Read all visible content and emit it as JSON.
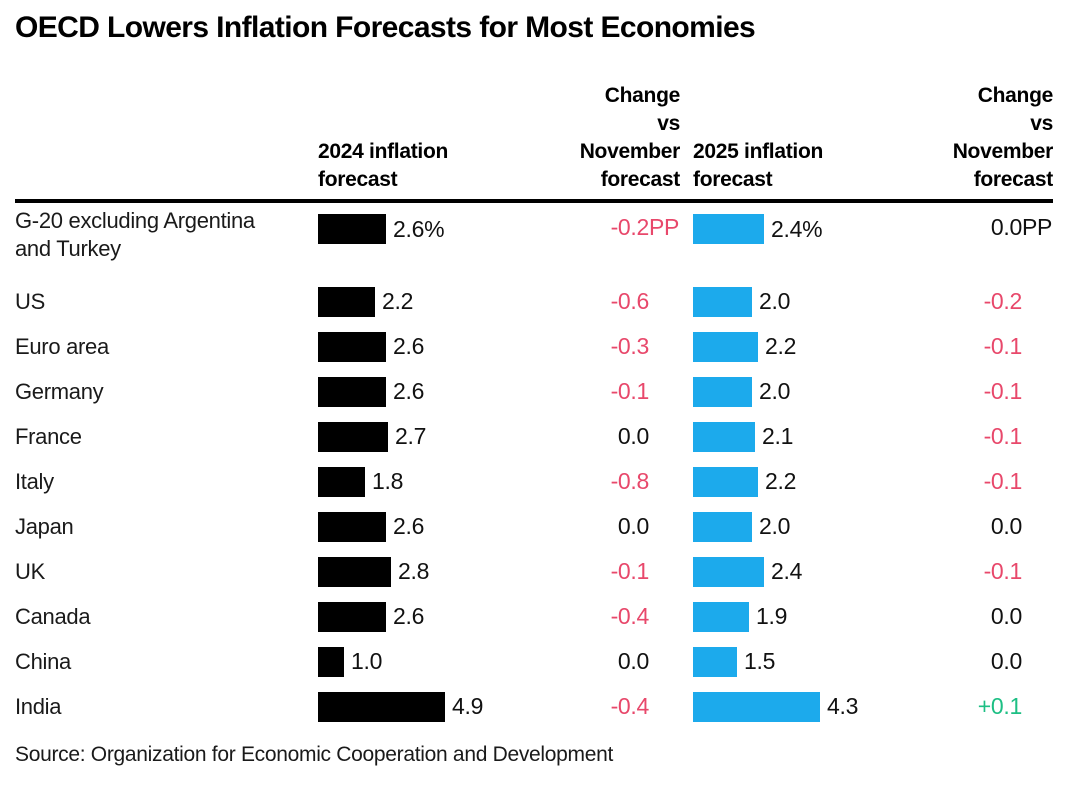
{
  "title": "OECD Lowers Inflation Forecasts for Most Economies",
  "source": "Source: Organization for Economic Cooperation and Development",
  "colors": {
    "bar_2024": "#000000",
    "bar_2025": "#1caaec",
    "negative_change": "#e8486b",
    "positive_change": "#1dbf84",
    "zero_change": "#111111",
    "text": "#1a1a1a",
    "rule": "#000000"
  },
  "headers": {
    "col_2024": [
      "2024 inflation",
      "forecast"
    ],
    "col_change_2024": [
      "Change",
      "vs",
      "November",
      "forecast"
    ],
    "col_2025": [
      "2025 inflation",
      "forecast"
    ],
    "col_change_2025": [
      "Change",
      "vs",
      "November",
      "forecast"
    ]
  },
  "chart_data": {
    "type": "bar",
    "orientation": "horizontal",
    "title": "OECD Lowers Inflation Forecasts for Most Economies",
    "categories": [
      "G-20 excluding Argentina and Turkey",
      "US",
      "Euro area",
      "Germany",
      "France",
      "Italy",
      "Japan",
      "UK",
      "Canada",
      "China",
      "India"
    ],
    "series": [
      {
        "name": "2024 inflation forecast",
        "color": "#000000",
        "values": [
          2.6,
          2.2,
          2.6,
          2.6,
          2.7,
          1.8,
          2.6,
          2.8,
          2.6,
          1.0,
          4.9
        ]
      },
      {
        "name": "2025 inflation forecast",
        "color": "#1caaec",
        "values": [
          2.4,
          2.0,
          2.2,
          2.0,
          2.1,
          2.2,
          2.0,
          2.4,
          1.9,
          1.5,
          4.3
        ]
      }
    ],
    "changes": [
      {
        "name": "Change vs November forecast (2024)",
        "values": [
          -0.2,
          -0.6,
          -0.3,
          -0.1,
          0.0,
          -0.8,
          0.0,
          -0.1,
          -0.4,
          0.0,
          -0.4
        ]
      },
      {
        "name": "Change vs November forecast (2025)",
        "values": [
          0.0,
          -0.2,
          -0.1,
          -0.1,
          -0.1,
          -0.1,
          0.0,
          -0.1,
          0.0,
          0.0,
          0.1
        ]
      }
    ],
    "unit_note": "first row shown with % on bar values and PP on change values",
    "source": "Source: Organization for Economic Cooperation and Development"
  },
  "rows": [
    {
      "label": "G-20 excluding Argentina and Turkey",
      "label_lines": [
        "G-20 excluding Argentina",
        "and Turkey"
      ],
      "v2024": 2.6,
      "v2024_label": "2.6%",
      "chg2024": "-0.2",
      "chg2024_suffix": "PP",
      "chg2024_state": "neg",
      "v2025": 2.4,
      "v2025_label": "2.4%",
      "chg2025": "0.0",
      "chg2025_suffix": "PP",
      "chg2025_state": "zero"
    },
    {
      "label": "US",
      "label_lines": [
        "US"
      ],
      "v2024": 2.2,
      "v2024_label": "2.2",
      "chg2024": "-0.6",
      "chg2024_suffix": "",
      "chg2024_state": "neg",
      "v2025": 2.0,
      "v2025_label": "2.0",
      "chg2025": "-0.2",
      "chg2025_suffix": "",
      "chg2025_state": "neg"
    },
    {
      "label": "Euro area",
      "label_lines": [
        "Euro area"
      ],
      "v2024": 2.6,
      "v2024_label": "2.6",
      "chg2024": "-0.3",
      "chg2024_suffix": "",
      "chg2024_state": "neg",
      "v2025": 2.2,
      "v2025_label": "2.2",
      "chg2025": "-0.1",
      "chg2025_suffix": "",
      "chg2025_state": "neg"
    },
    {
      "label": "Germany",
      "label_lines": [
        "Germany"
      ],
      "v2024": 2.6,
      "v2024_label": "2.6",
      "chg2024": "-0.1",
      "chg2024_suffix": "",
      "chg2024_state": "neg",
      "v2025": 2.0,
      "v2025_label": "2.0",
      "chg2025": "-0.1",
      "chg2025_suffix": "",
      "chg2025_state": "neg"
    },
    {
      "label": "France",
      "label_lines": [
        "France"
      ],
      "v2024": 2.7,
      "v2024_label": "2.7",
      "chg2024": "0.0",
      "chg2024_suffix": "",
      "chg2024_state": "zero",
      "v2025": 2.1,
      "v2025_label": "2.1",
      "chg2025": "-0.1",
      "chg2025_suffix": "",
      "chg2025_state": "neg"
    },
    {
      "label": "Italy",
      "label_lines": [
        "Italy"
      ],
      "v2024": 1.8,
      "v2024_label": "1.8",
      "chg2024": "-0.8",
      "chg2024_suffix": "",
      "chg2024_state": "neg",
      "v2025": 2.2,
      "v2025_label": "2.2",
      "chg2025": "-0.1",
      "chg2025_suffix": "",
      "chg2025_state": "neg"
    },
    {
      "label": "Japan",
      "label_lines": [
        "Japan"
      ],
      "v2024": 2.6,
      "v2024_label": "2.6",
      "chg2024": "0.0",
      "chg2024_suffix": "",
      "chg2024_state": "zero",
      "v2025": 2.0,
      "v2025_label": "2.0",
      "chg2025": "0.0",
      "chg2025_suffix": "",
      "chg2025_state": "zero"
    },
    {
      "label": "UK",
      "label_lines": [
        "UK"
      ],
      "v2024": 2.8,
      "v2024_label": "2.8",
      "chg2024": "-0.1",
      "chg2024_suffix": "",
      "chg2024_state": "neg",
      "v2025": 2.4,
      "v2025_label": "2.4",
      "chg2025": "-0.1",
      "chg2025_suffix": "",
      "chg2025_state": "neg"
    },
    {
      "label": "Canada",
      "label_lines": [
        "Canada"
      ],
      "v2024": 2.6,
      "v2024_label": "2.6",
      "chg2024": "-0.4",
      "chg2024_suffix": "",
      "chg2024_state": "neg",
      "v2025": 1.9,
      "v2025_label": "1.9",
      "chg2025": "0.0",
      "chg2025_suffix": "",
      "chg2025_state": "zero"
    },
    {
      "label": "China",
      "label_lines": [
        "China"
      ],
      "v2024": 1.0,
      "v2024_label": "1.0",
      "chg2024": "0.0",
      "chg2024_suffix": "",
      "chg2024_state": "zero",
      "v2025": 1.5,
      "v2025_label": "1.5",
      "chg2025": "0.0",
      "chg2025_suffix": "",
      "chg2025_state": "zero"
    },
    {
      "label": "India",
      "label_lines": [
        "India"
      ],
      "v2024": 4.9,
      "v2024_label": "4.9",
      "chg2024": "-0.4",
      "chg2024_suffix": "",
      "chg2024_state": "neg",
      "v2025": 4.3,
      "v2025_label": "4.3",
      "chg2025": "+0.1",
      "chg2025_suffix": "",
      "chg2025_state": "pos"
    }
  ]
}
